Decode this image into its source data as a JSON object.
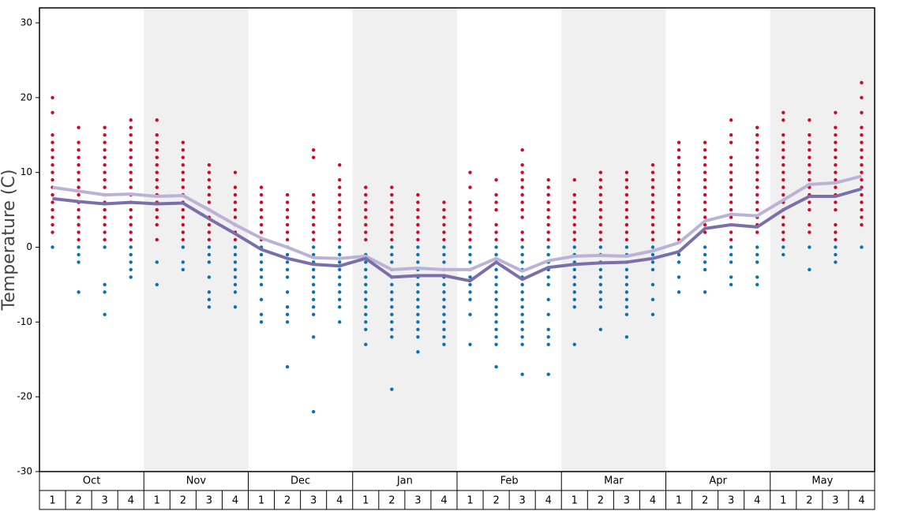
{
  "chart_data": {
    "type": "dot-line",
    "y_label": "Temperature (C)",
    "ylim": [
      -30,
      32
    ],
    "yticks": [
      -30,
      -20,
      -10,
      0,
      10,
      20,
      30
    ],
    "months": [
      "Oct",
      "Nov",
      "Dec",
      "Jan",
      "Feb",
      "Mar",
      "Apr",
      "May"
    ],
    "weeks": [
      "1",
      "2",
      "3",
      "4"
    ],
    "shaded_months": [
      false,
      true,
      false,
      true,
      false,
      true,
      false,
      true
    ],
    "lines": [
      {
        "color": "#bab3d6",
        "values": [
          8.0,
          7.5,
          7.0,
          7.1,
          6.8,
          6.9,
          5.0,
          3.0,
          1.2,
          0.0,
          -1.4,
          -1.5,
          -1.2,
          -3.0,
          -2.8,
          -3.0,
          -3.0,
          -1.5,
          -3.2,
          -1.8,
          -1.2,
          -1.1,
          -1.2,
          -0.5,
          0.6,
          3.5,
          4.4,
          4.2,
          6.3,
          8.4,
          8.6,
          9.5
        ]
      },
      {
        "color": "#7a6fa9",
        "values": [
          6.5,
          6.1,
          5.8,
          6.0,
          5.8,
          5.9,
          3.8,
          1.8,
          -0.3,
          -1.5,
          -2.3,
          -2.5,
          -1.5,
          -4.0,
          -3.8,
          -3.8,
          -4.5,
          -2.0,
          -4.3,
          -2.7,
          -2.3,
          -2.1,
          -2.0,
          -1.5,
          -0.6,
          2.5,
          3.0,
          2.7,
          5.0,
          6.8,
          6.8,
          7.8
        ]
      }
    ],
    "dots": {
      "high_color": "#cc0a2b",
      "low_color": "#0a72b3",
      "high": [
        [
          20,
          18,
          15,
          14,
          13,
          12,
          11,
          10,
          9,
          8,
          7,
          6,
          5,
          4,
          3,
          2
        ],
        [
          16,
          14,
          13,
          12,
          11,
          10,
          9,
          8,
          7,
          6,
          5,
          4,
          3,
          2,
          1
        ],
        [
          16,
          15,
          14,
          13,
          12,
          11,
          10,
          9,
          8,
          7,
          6,
          5,
          4,
          3,
          2,
          1
        ],
        [
          17,
          16,
          15,
          14,
          13,
          12,
          11,
          10,
          9,
          8,
          7,
          6,
          5,
          4,
          3,
          2,
          1
        ],
        [
          17,
          15,
          14,
          13,
          12,
          11,
          10,
          9,
          8,
          7,
          6,
          5,
          4,
          3,
          1
        ],
        [
          14,
          13,
          12,
          11,
          10,
          9,
          8,
          7,
          6,
          5,
          4,
          3,
          2,
          1
        ],
        [
          11,
          10,
          9,
          8,
          7,
          6,
          5,
          4,
          3,
          2,
          1
        ],
        [
          10,
          8,
          7,
          6,
          5,
          4,
          3,
          2,
          1
        ],
        [
          8,
          7,
          6,
          5,
          4,
          3,
          2,
          1
        ],
        [
          7,
          6,
          5,
          4,
          3,
          2,
          1
        ],
        [
          13,
          12,
          7,
          6,
          5,
          4,
          3,
          2,
          1
        ],
        [
          11,
          9,
          8,
          7,
          6,
          5,
          4,
          3,
          2,
          1
        ],
        [
          8,
          7,
          6,
          5,
          4,
          3,
          2,
          1
        ],
        [
          8,
          7,
          6,
          5,
          4,
          3,
          2,
          1
        ],
        [
          7,
          6,
          5,
          4,
          3,
          2,
          1
        ],
        [
          6,
          5,
          4,
          3,
          2,
          1
        ],
        [
          10,
          8,
          6,
          5,
          4,
          3,
          2,
          1
        ],
        [
          9,
          7,
          6,
          5,
          3,
          2,
          1
        ],
        [
          13,
          11,
          10,
          9,
          8,
          7,
          6,
          5,
          4,
          2,
          1
        ],
        [
          9,
          8,
          7,
          6,
          5,
          4,
          3,
          2,
          1
        ],
        [
          9,
          7,
          6,
          5,
          4,
          3,
          2,
          1
        ],
        [
          10,
          9,
          8,
          7,
          6,
          5,
          4,
          3,
          2,
          1
        ],
        [
          10,
          9,
          8,
          7,
          6,
          5,
          4,
          3,
          2,
          1
        ],
        [
          11,
          10,
          9,
          8,
          7,
          6,
          5,
          4,
          3,
          2,
          1
        ],
        [
          14,
          13,
          12,
          11,
          10,
          9,
          8,
          7,
          6,
          5,
          4,
          3,
          2,
          1
        ],
        [
          14,
          13,
          12,
          11,
          10,
          9,
          8,
          7,
          6,
          5,
          4,
          3,
          2
        ],
        [
          17,
          15,
          14,
          12,
          11,
          10,
          9,
          8,
          7,
          6,
          5,
          4,
          3,
          2,
          1
        ],
        [
          16,
          15,
          14,
          13,
          12,
          11,
          10,
          9,
          8,
          7,
          6,
          5,
          4,
          3,
          2
        ],
        [
          18,
          17,
          15,
          14,
          13,
          12,
          11,
          10,
          9,
          8,
          7,
          6,
          5,
          4,
          3,
          2,
          1
        ],
        [
          17,
          15,
          14,
          13,
          12,
          11,
          10,
          9,
          8,
          7,
          6,
          5,
          3,
          2
        ],
        [
          18,
          16,
          15,
          14,
          13,
          12,
          11,
          10,
          9,
          8,
          7,
          6,
          5,
          3,
          2,
          1
        ],
        [
          22,
          20,
          18,
          16,
          15,
          14,
          13,
          12,
          11,
          10,
          9,
          8,
          7,
          6,
          5,
          4,
          3
        ]
      ],
      "low": [
        [
          0
        ],
        [
          0,
          -1,
          -2,
          -6
        ],
        [
          0,
          -5,
          -6,
          -9
        ],
        [
          0,
          -1,
          -2,
          -3,
          -4
        ],
        [
          -2,
          -5
        ],
        [
          0,
          -2,
          -3
        ],
        [
          0,
          -1,
          -2,
          -4,
          -6,
          -7,
          -8
        ],
        [
          0,
          -1,
          -2,
          -3,
          -4,
          -5,
          -6,
          -8
        ],
        [
          0,
          -1,
          -2,
          -3,
          -4,
          -5,
          -7,
          -9,
          -10
        ],
        [
          0,
          -1,
          -2,
          -3,
          -4,
          -6,
          -8,
          -9,
          -10,
          -16
        ],
        [
          0,
          -1,
          -2,
          -3,
          -4,
          -5,
          -6,
          -7,
          -8,
          -9,
          -12,
          -22
        ],
        [
          0,
          -1,
          -2,
          -3,
          -4,
          -5,
          -6,
          -7,
          -8,
          -10
        ],
        [
          -1,
          -2,
          -3,
          -4,
          -5,
          -6,
          -7,
          -8,
          -9,
          -10,
          -11,
          -13
        ],
        [
          0,
          -1,
          -2,
          -3,
          -4,
          -5,
          -6,
          -7,
          -8,
          -9,
          -10,
          -11,
          -12,
          -19
        ],
        [
          0,
          -1,
          -2,
          -3,
          -4,
          -5,
          -6,
          -7,
          -8,
          -9,
          -10,
          -11,
          -12,
          -14
        ],
        [
          0,
          -1,
          -2,
          -3,
          -4,
          -5,
          -6,
          -7,
          -8,
          -9,
          -10,
          -11,
          -12,
          -13
        ],
        [
          0,
          -1,
          -2,
          -3,
          -4,
          -5,
          -6,
          -7,
          -9,
          -13
        ],
        [
          0,
          -1,
          -2,
          -3,
          -4,
          -5,
          -6,
          -7,
          -8,
          -9,
          -10,
          -11,
          -12,
          -13,
          -16
        ],
        [
          0,
          -1,
          -2,
          -3,
          -4,
          -5,
          -6,
          -7,
          -8,
          -9,
          -10,
          -11,
          -12,
          -13,
          -17
        ],
        [
          0,
          -1,
          -2,
          -3,
          -4,
          -5,
          -7,
          -9,
          -11,
          -12,
          -13,
          -17
        ],
        [
          0,
          -1,
          -2,
          -3,
          -4,
          -5,
          -6,
          -7,
          -8,
          -13
        ],
        [
          0,
          -1,
          -2,
          -3,
          -4,
          -5,
          -6,
          -7,
          -8,
          -11
        ],
        [
          0,
          -1,
          -2,
          -3,
          -4,
          -5,
          -6,
          -7,
          -8,
          -9,
          -12
        ],
        [
          0,
          -1,
          -2,
          -3,
          -5,
          -7,
          -9
        ],
        [
          -1,
          -2,
          -4,
          -6
        ],
        [
          0,
          -1,
          -2,
          -3,
          -6
        ],
        [
          0,
          -1,
          -2,
          -4,
          -5
        ],
        [
          0,
          -1,
          -2,
          -4,
          -5
        ],
        [
          0,
          -1
        ],
        [
          0,
          -3
        ],
        [
          0,
          -1,
          -2
        ],
        [
          0
        ]
      ]
    }
  }
}
